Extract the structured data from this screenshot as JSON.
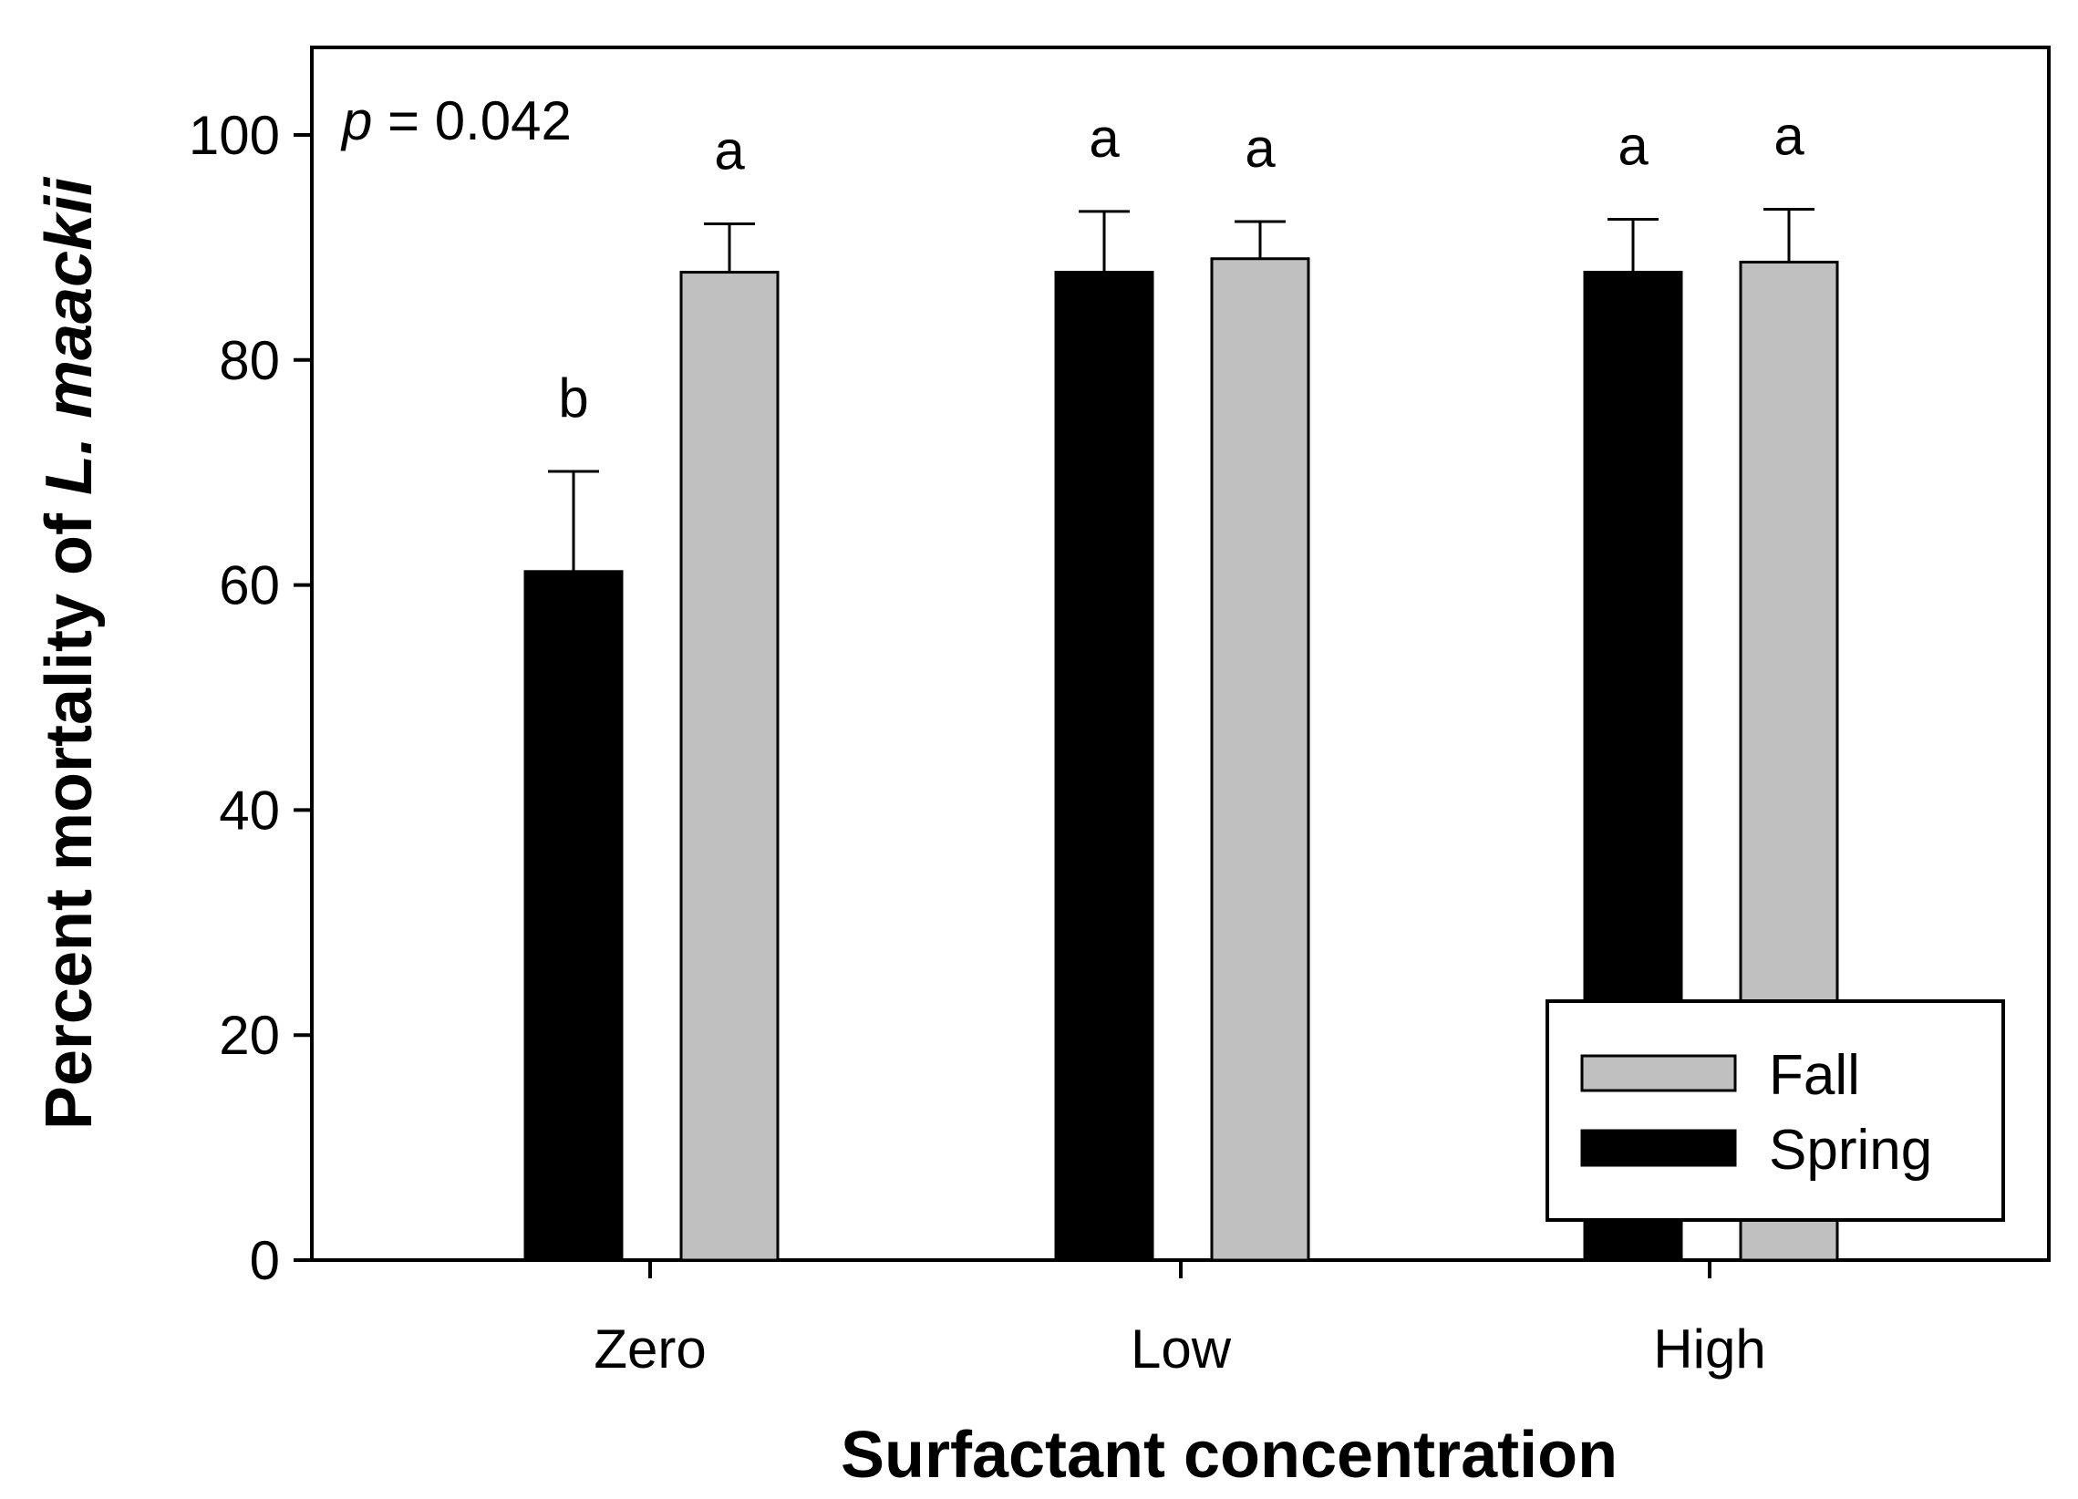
{
  "chart_data": {
    "type": "bar",
    "categories": [
      "Zero",
      "Low",
      "High"
    ],
    "series": [
      {
        "name": "Spring",
        "color": "#000000",
        "values": [
          61.2,
          87.8,
          87.8
        ],
        "errors": [
          8.9,
          5.4,
          4.7
        ]
      },
      {
        "name": "Fall",
        "color": "#c0c0c0",
        "values": [
          87.8,
          89.0,
          88.7
        ],
        "errors": [
          4.3,
          3.3,
          4.7
        ]
      }
    ],
    "significance": [
      [
        "b",
        "a"
      ],
      [
        "a",
        "a"
      ],
      [
        "a",
        "a"
      ]
    ],
    "annotation": {
      "p_symbol": "p",
      "p_text": " = 0.042"
    },
    "xlabel": "Surfactant concentration",
    "ylabel_prefix": "Percent mortality of ",
    "ylabel_species": "L. maackii",
    "ylim": [
      0,
      108
    ],
    "yticks": [
      0,
      20,
      40,
      60,
      80,
      100
    ],
    "legend": {
      "position": "bottom-right",
      "entries": [
        "Fall",
        "Spring"
      ]
    },
    "grid": false
  }
}
